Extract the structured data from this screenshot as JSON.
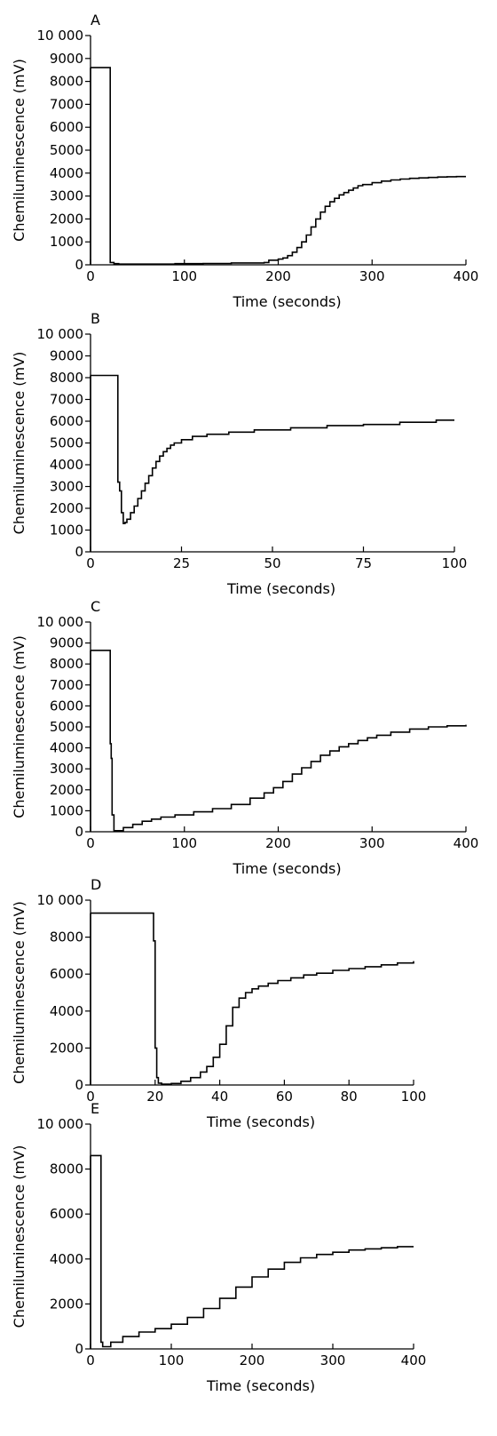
{
  "figure": {
    "description_free": true
  },
  "chart_data": [
    {
      "panel": "A",
      "type": "line",
      "xlabel": "Time (seconds)",
      "ylabel": "Chemiluminescence (mV)",
      "xlim": [
        0,
        400
      ],
      "ylim": [
        0,
        10000
      ],
      "xticks": [
        "0",
        "100",
        "200",
        "300",
        "400"
      ],
      "yticks": [
        "0",
        "1000",
        "2000",
        "3000",
        "4000",
        "5000",
        "6000",
        "7000",
        "8000",
        "9000",
        "10 000"
      ],
      "series": [
        {
          "x": [
            0,
            20,
            21,
            25,
            30,
            60,
            90,
            120,
            150,
            185,
            190,
            200,
            205,
            210,
            215,
            220,
            225,
            230,
            235,
            240,
            245,
            250,
            255,
            260,
            265,
            270,
            275,
            280,
            285,
            290,
            300,
            310,
            320,
            330,
            340,
            350,
            360,
            370,
            380,
            390,
            400
          ],
          "y": [
            8600,
            8600,
            100,
            50,
            30,
            30,
            50,
            60,
            80,
            100,
            200,
            250,
            300,
            400,
            550,
            750,
            1000,
            1300,
            1650,
            2000,
            2300,
            2550,
            2750,
            2900,
            3050,
            3150,
            3250,
            3350,
            3450,
            3500,
            3580,
            3650,
            3700,
            3740,
            3770,
            3790,
            3810,
            3830,
            3840,
            3850,
            3850
          ]
        }
      ]
    },
    {
      "panel": "B",
      "type": "line",
      "xlabel": "Time (seconds)",
      "ylabel": "Chemiluminescence (mV)",
      "xlim": [
        0,
        100
      ],
      "ylim": [
        0,
        10000
      ],
      "xticks": [
        "0",
        "25",
        "50",
        "75",
        "100"
      ],
      "yticks": [
        "0",
        "1000",
        "2000",
        "3000",
        "4000",
        "5000",
        "6000",
        "7000",
        "8000",
        "9000",
        "10 000"
      ],
      "series": [
        {
          "x": [
            0,
            7.5,
            7.5,
            8,
            8.5,
            9,
            9.5,
            10,
            11,
            12,
            13,
            14,
            15,
            16,
            17,
            18,
            19,
            20,
            21,
            22,
            23,
            25,
            28,
            32,
            38,
            45,
            55,
            65,
            75,
            85,
            95,
            100
          ],
          "y": [
            8100,
            8100,
            3200,
            2800,
            1800,
            1300,
            1350,
            1500,
            1800,
            2100,
            2450,
            2800,
            3150,
            3500,
            3850,
            4150,
            4400,
            4600,
            4750,
            4900,
            5000,
            5150,
            5300,
            5400,
            5500,
            5600,
            5700,
            5800,
            5850,
            5950,
            6050,
            6050
          ]
        }
      ]
    },
    {
      "panel": "C",
      "type": "line",
      "xlabel": "Time (seconds)",
      "ylabel": "Chemiluminescence (mV)",
      "xlim": [
        0,
        400
      ],
      "ylim": [
        0,
        10000
      ],
      "xticks": [
        "0",
        "100",
        "200",
        "300",
        "400"
      ],
      "yticks": [
        "0",
        "1000",
        "2000",
        "3000",
        "4000",
        "5000",
        "6000",
        "7000",
        "8000",
        "9000",
        "10 000"
      ],
      "series": [
        {
          "x": [
            0,
            20,
            21,
            22,
            23,
            25,
            35,
            45,
            55,
            65,
            75,
            90,
            110,
            130,
            150,
            170,
            185,
            195,
            205,
            215,
            225,
            235,
            245,
            255,
            265,
            275,
            285,
            295,
            305,
            320,
            340,
            360,
            380,
            400
          ],
          "y": [
            8650,
            8650,
            4200,
            3500,
            800,
            50,
            200,
            350,
            500,
            600,
            700,
            800,
            950,
            1100,
            1300,
            1600,
            1850,
            2100,
            2400,
            2750,
            3050,
            3350,
            3650,
            3850,
            4050,
            4200,
            4350,
            4480,
            4600,
            4750,
            4900,
            5000,
            5050,
            5100
          ]
        }
      ]
    },
    {
      "panel": "D",
      "type": "line",
      "xlabel": "Time (seconds)",
      "ylabel": "Chemiluminescence (mV)",
      "xlim": [
        0,
        100
      ],
      "ylim": [
        0,
        10000
      ],
      "xticks": [
        "0",
        "20",
        "40",
        "60",
        "80",
        "100"
      ],
      "yticks": [
        "0",
        "2000",
        "4000",
        "6000",
        "8000",
        "10 000"
      ],
      "series": [
        {
          "x": [
            0,
            19,
            19.5,
            20,
            20.5,
            21,
            22,
            25,
            28,
            31,
            34,
            36,
            38,
            40,
            42,
            44,
            46,
            48,
            50,
            52,
            55,
            58,
            62,
            66,
            70,
            75,
            80,
            85,
            90,
            95,
            100
          ],
          "y": [
            9300,
            9300,
            7800,
            2000,
            400,
            100,
            50,
            80,
            200,
            400,
            700,
            1000,
            1500,
            2200,
            3200,
            4200,
            4700,
            5000,
            5200,
            5350,
            5500,
            5650,
            5800,
            5950,
            6050,
            6200,
            6300,
            6400,
            6500,
            6600,
            6700
          ]
        }
      ]
    },
    {
      "panel": "E",
      "type": "line",
      "xlabel": "Time (seconds)",
      "ylabel": "Chemiluminescence (mV)",
      "xlim": [
        0,
        400
      ],
      "ylim": [
        0,
        10000
      ],
      "xticks": [
        "0",
        "100",
        "200",
        "300",
        "400"
      ],
      "yticks": [
        "0",
        "2000",
        "4000",
        "6000",
        "8000",
        "10 000"
      ],
      "series": [
        {
          "x": [
            0,
            12,
            13,
            15,
            25,
            40,
            60,
            80,
            100,
            120,
            140,
            160,
            180,
            200,
            220,
            240,
            260,
            280,
            300,
            320,
            340,
            360,
            380,
            400
          ],
          "y": [
            8600,
            8600,
            300,
            100,
            300,
            550,
            750,
            900,
            1100,
            1400,
            1800,
            2250,
            2750,
            3200,
            3550,
            3850,
            4050,
            4200,
            4300,
            4400,
            4450,
            4500,
            4550,
            4550
          ]
        }
      ]
    }
  ]
}
